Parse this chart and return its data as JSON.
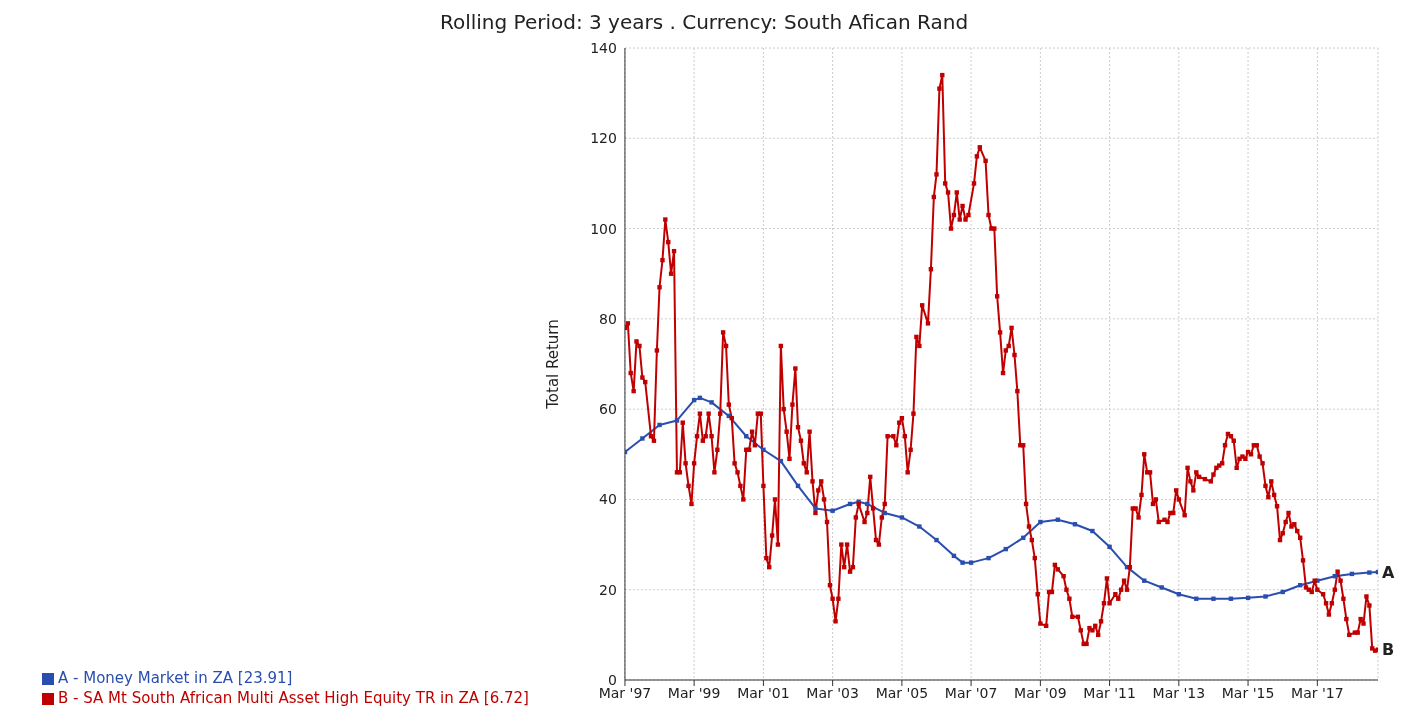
{
  "chart_data": {
    "type": "line",
    "title": "Rolling Period: 3 years  . Currency: South Afican Rand",
    "ylabel": "Total Return",
    "xlim": [
      "1997-03",
      "2018-12"
    ],
    "xticks": [
      {
        "value": "1997-03",
        "label": "Mar '97"
      },
      {
        "value": "1999-03",
        "label": "Mar '99"
      },
      {
        "value": "2001-03",
        "label": "Mar '01"
      },
      {
        "value": "2003-03",
        "label": "Mar '03"
      },
      {
        "value": "2005-03",
        "label": "Mar '05"
      },
      {
        "value": "2007-03",
        "label": "Mar '07"
      },
      {
        "value": "2009-03",
        "label": "Mar '09"
      },
      {
        "value": "2011-03",
        "label": "Mar '11"
      },
      {
        "value": "2013-03",
        "label": "Mar '13"
      },
      {
        "value": "2015-03",
        "label": "Mar '15"
      },
      {
        "value": "2017-03",
        "label": "Mar '17"
      }
    ],
    "ylim": [
      0,
      140
    ],
    "yticks": [
      0,
      20,
      40,
      60,
      80,
      100,
      120,
      140
    ],
    "grid": true,
    "legend": "bottom left",
    "marker": "square",
    "line_style": "solid",
    "annotations": [
      {
        "text": "A",
        "x": "2018-12",
        "y": 23.91
      },
      {
        "text": "B",
        "x": "2018-12",
        "y": 6.72
      }
    ],
    "series": [
      {
        "name": "A - Money Market in ZA [23.91]",
        "color": "#2a4eb0",
        "x": [
          "1997-03",
          "1997-09",
          "1998-03",
          "1998-09",
          "1999-03",
          "1999-05",
          "1999-09",
          "2000-03",
          "2000-09",
          "2001-03",
          "2001-09",
          "2002-03",
          "2002-09",
          "2003-03",
          "2003-09",
          "2003-12",
          "2004-03",
          "2004-09",
          "2005-03",
          "2005-09",
          "2006-03",
          "2006-09",
          "2006-12",
          "2007-03",
          "2007-09",
          "2008-03",
          "2008-09",
          "2009-03",
          "2009-09",
          "2010-03",
          "2010-09",
          "2011-03",
          "2011-09",
          "2012-03",
          "2012-09",
          "2013-03",
          "2013-09",
          "2014-03",
          "2014-09",
          "2015-03",
          "2015-09",
          "2016-03",
          "2016-09",
          "2017-03",
          "2017-09",
          "2018-03",
          "2018-09",
          "2018-12"
        ],
        "values": [
          50.5,
          53.5,
          56.5,
          57.5,
          62,
          62.5,
          61.5,
          58.5,
          54,
          51,
          48.5,
          43,
          38,
          37.5,
          39,
          39.5,
          39,
          37,
          36,
          34,
          31,
          27.5,
          26,
          26,
          27,
          29,
          31.5,
          35,
          35.5,
          34.5,
          33,
          29.5,
          25,
          22,
          20.5,
          19,
          18,
          18,
          18,
          18.2,
          18.5,
          19.5,
          21,
          22,
          23,
          23.5,
          23.8,
          23.91
        ]
      },
      {
        "name": "B - SA Mt South African Multi Asset High Equity TR in ZA [6.72]",
        "color": "#c00000",
        "x": [
          "1997-03",
          "1997-04",
          "1997-05",
          "1997-06",
          "1997-07",
          "1997-08",
          "1997-09",
          "1997-10",
          "1997-12",
          "1998-01",
          "1998-02",
          "1998-03",
          "1998-04",
          "1998-05",
          "1998-06",
          "1998-07",
          "1998-08",
          "1998-09",
          "1998-10",
          "1998-11",
          "1998-12",
          "1999-01",
          "1999-02",
          "1999-03",
          "1999-04",
          "1999-05",
          "1999-06",
          "1999-07",
          "1999-08",
          "1999-09",
          "1999-10",
          "1999-11",
          "1999-12",
          "2000-01",
          "2000-02",
          "2000-03",
          "2000-04",
          "2000-05",
          "2000-06",
          "2000-07",
          "2000-08",
          "2000-09",
          "2000-10",
          "2000-11",
          "2000-12",
          "2001-01",
          "2001-02",
          "2001-03",
          "2001-04",
          "2001-05",
          "2001-06",
          "2001-07",
          "2001-08",
          "2001-09",
          "2001-10",
          "2001-11",
          "2001-12",
          "2002-01",
          "2002-02",
          "2002-03",
          "2002-04",
          "2002-05",
          "2002-06",
          "2002-07",
          "2002-08",
          "2002-09",
          "2002-10",
          "2002-11",
          "2002-12",
          "2003-01",
          "2003-02",
          "2003-03",
          "2003-04",
          "2003-05",
          "2003-06",
          "2003-07",
          "2003-08",
          "2003-09",
          "2003-10",
          "2003-11",
          "2003-12",
          "2004-02",
          "2004-03",
          "2004-04",
          "2004-05",
          "2004-06",
          "2004-07",
          "2004-08",
          "2004-09",
          "2004-10",
          "2004-12",
          "2005-01",
          "2005-02",
          "2005-03",
          "2005-04",
          "2005-05",
          "2005-06",
          "2005-07",
          "2005-08",
          "2005-09",
          "2005-10",
          "2005-12",
          "2006-01",
          "2006-02",
          "2006-03",
          "2006-04",
          "2006-05",
          "2006-06",
          "2006-07",
          "2006-08",
          "2006-09",
          "2006-10",
          "2006-11",
          "2006-12",
          "2007-01",
          "2007-02",
          "2007-04",
          "2007-05",
          "2007-06",
          "2007-08",
          "2007-09",
          "2007-10",
          "2007-11",
          "2007-12",
          "2008-01",
          "2008-02",
          "2008-03",
          "2008-04",
          "2008-05",
          "2008-06",
          "2008-07",
          "2008-08",
          "2008-09",
          "2008-10",
          "2008-11",
          "2008-12",
          "2009-01",
          "2009-02",
          "2009-03",
          "2009-05",
          "2009-06",
          "2009-07",
          "2009-08",
          "2009-09",
          "2009-11",
          "2009-12",
          "2010-01",
          "2010-02",
          "2010-04",
          "2010-05",
          "2010-06",
          "2010-07",
          "2010-08",
          "2010-09",
          "2010-10",
          "2010-11",
          "2010-12",
          "2011-01",
          "2011-02",
          "2011-03",
          "2011-05",
          "2011-06",
          "2011-07",
          "2011-08",
          "2011-09",
          "2011-10",
          "2011-11",
          "2011-12",
          "2012-01",
          "2012-02",
          "2012-03",
          "2012-04",
          "2012-05",
          "2012-06",
          "2012-07",
          "2012-08",
          "2012-10",
          "2012-11",
          "2012-12",
          "2013-01",
          "2013-02",
          "2013-03",
          "2013-05",
          "2013-06",
          "2013-07",
          "2013-08",
          "2013-09",
          "2013-10",
          "2013-12",
          "2014-02",
          "2014-03",
          "2014-04",
          "2014-05",
          "2014-06",
          "2014-07",
          "2014-08",
          "2014-09",
          "2014-10",
          "2014-11",
          "2014-12",
          "2015-01",
          "2015-02",
          "2015-03",
          "2015-04",
          "2015-05",
          "2015-06",
          "2015-07",
          "2015-08",
          "2015-09",
          "2015-10",
          "2015-11",
          "2015-12",
          "2016-01",
          "2016-02",
          "2016-03",
          "2016-04",
          "2016-05",
          "2016-06",
          "2016-07",
          "2016-08",
          "2016-09",
          "2016-10",
          "2016-11",
          "2016-12",
          "2017-01",
          "2017-02",
          "2017-03",
          "2017-05",
          "2017-06",
          "2017-07",
          "2017-08",
          "2017-09",
          "2017-10",
          "2017-11",
          "2017-12",
          "2018-01",
          "2018-02",
          "2018-04",
          "2018-05",
          "2018-06",
          "2018-07",
          "2018-08",
          "2018-09",
          "2018-10",
          "2018-11",
          "2018-12"
        ],
        "values": [
          78,
          79,
          68,
          64,
          75,
          74,
          67,
          66,
          54,
          53,
          73,
          87,
          93,
          102,
          97,
          90,
          95,
          46,
          46,
          57,
          48,
          43,
          39,
          48,
          54,
          59,
          53,
          54,
          59,
          54,
          46,
          51,
          59,
          77,
          74,
          61,
          58,
          48,
          46,
          43,
          40,
          51,
          51,
          55,
          52,
          59,
          59,
          43,
          27,
          25,
          32,
          40,
          30,
          74,
          60,
          55,
          49,
          61,
          69,
          56,
          53,
          48,
          46,
          55,
          44,
          37,
          42,
          44,
          40,
          35,
          21,
          18,
          13,
          18,
          30,
          25,
          30,
          24,
          25,
          36,
          39,
          35,
          37,
          45,
          38,
          31,
          30,
          36,
          39,
          54,
          54,
          52,
          57,
          58,
          54,
          46,
          51,
          59,
          76,
          74,
          83,
          79,
          91,
          107,
          112,
          131,
          134,
          110,
          108,
          100,
          103,
          108,
          102,
          105,
          102,
          103,
          110,
          116,
          118,
          115,
          103,
          100,
          100,
          85,
          77,
          68,
          73,
          74,
          78,
          72,
          64,
          52,
          52,
          39,
          34,
          31,
          27,
          19,
          12.5,
          12,
          19.5,
          19.5,
          25.5,
          24.5,
          23,
          20,
          18,
          14,
          14,
          11,
          8,
          8,
          11.5,
          11,
          12,
          10,
          13,
          17,
          22.5,
          17,
          19,
          18,
          20,
          22,
          20,
          25,
          38,
          38,
          36,
          41,
          50,
          46,
          46,
          39,
          40,
          35,
          35.5,
          35,
          37,
          37,
          42,
          40,
          36.5,
          47,
          44,
          42,
          46,
          45,
          44.5,
          44,
          45.5,
          47,
          47.5,
          48,
          52,
          54.5,
          54,
          53,
          47,
          49,
          49.5,
          49,
          50.5,
          50,
          52,
          52,
          49.5,
          48,
          43,
          40.5,
          44,
          41,
          38.5,
          31,
          32.5,
          35,
          37,
          34,
          34.5,
          33,
          31.5,
          26.5,
          20.5,
          20,
          19.5,
          22,
          20,
          19,
          17,
          14.5,
          17,
          20,
          24,
          22,
          18,
          13.5,
          10,
          10.5,
          10.5,
          13.5,
          12.5,
          18.5,
          16.5,
          7,
          6.5,
          6.72
        ]
      }
    ]
  }
}
